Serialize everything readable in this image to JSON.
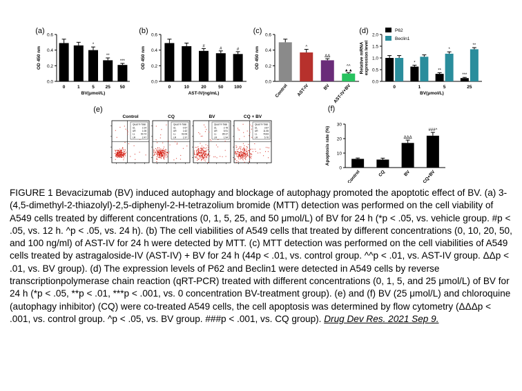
{
  "colors": {
    "black": "#000000",
    "gray": "#8a8a8a",
    "red": "#b7312c",
    "purple": "#6a2c79",
    "green": "#27c25f",
    "teal": "#2a8d9c",
    "flow": "#d62a1f"
  },
  "chart_data": [
    {
      "panel": "(a)",
      "type": "bar",
      "categories": [
        "0",
        "1",
        "5",
        "25",
        "50"
      ],
      "values": [
        0.49,
        0.46,
        0.4,
        0.27,
        0.21
      ],
      "errors": [
        0.05,
        0.04,
        0.04,
        0.03,
        0.02
      ],
      "marks": [
        "",
        "",
        "*",
        "**",
        "***"
      ],
      "ylabel": "OD 450 nm",
      "xlabel": "BV(μmol/L)",
      "ylim": [
        0,
        0.6
      ],
      "yticks": [
        "0.0",
        "0.2",
        "0.4",
        "0.6"
      ]
    },
    {
      "panel": "(b)",
      "type": "bar",
      "categories": [
        "0",
        "10",
        "20",
        "50",
        "100"
      ],
      "values": [
        0.49,
        0.45,
        0.39,
        0.36,
        0.35
      ],
      "errors": [
        0.05,
        0.04,
        0.03,
        0.03,
        0.03
      ],
      "marks": [
        "",
        "",
        "#",
        "#",
        "#"
      ],
      "ylabel": "OD 450 nm",
      "xlabel": "AST-IV(ng/mL)",
      "ylim": [
        0,
        0.6
      ],
      "yticks": [
        "0.0",
        "0.2",
        "0.4",
        "0.6"
      ]
    },
    {
      "panel": "(c)",
      "type": "bar",
      "categories": [
        "Control",
        "AST-IV",
        "BV",
        "AST-IV+BV"
      ],
      "values": [
        0.5,
        0.37,
        0.27,
        0.1
      ],
      "errors": [
        0.04,
        0.04,
        0.02,
        0.01
      ],
      "marks": [
        "",
        "^",
        "ΔΔ",
        "^^\n▲▲"
      ],
      "ylabel": "OD 450 nm",
      "ylim": [
        0,
        0.6
      ],
      "yticks": [
        "0.0",
        "0.2",
        "0.4",
        "0.6"
      ]
    },
    {
      "panel": "(d)",
      "type": "bar",
      "categories": [
        "0",
        "1",
        "5",
        "25"
      ],
      "series": [
        {
          "name": "P62",
          "values": [
            1.0,
            0.63,
            0.32,
            0.14
          ],
          "errors": [
            0.1,
            0.06,
            0.05,
            0.03
          ],
          "marks": [
            "",
            "*",
            "**",
            "***"
          ]
        },
        {
          "name": "Beclin1",
          "values": [
            1.0,
            1.05,
            1.18,
            1.37
          ],
          "errors": [
            0.1,
            0.08,
            0.08,
            0.07
          ],
          "marks": [
            "",
            "",
            "*",
            "**"
          ]
        }
      ],
      "ylabel": "Relative mRNA\nexpression level",
      "xlabel": "BV(μmol/L)",
      "ylim": [
        0,
        2.0
      ],
      "yticks": [
        "0.0",
        "0.5",
        "1.0",
        "1.5",
        "2.0"
      ],
      "legend": "top-right"
    },
    {
      "panel": "(f)",
      "type": "bar",
      "categories": [
        "Control",
        "CQ",
        "BV",
        "CQ+BV"
      ],
      "values": [
        6.0,
        5.5,
        17.0,
        22.0
      ],
      "errors": [
        0.6,
        1.0,
        2.0,
        2.3
      ],
      "marks": [
        "",
        "",
        "ΔΔΔ",
        "###^"
      ],
      "ylabel": "Apoptosis rate (%)",
      "ylim": [
        0,
        30
      ],
      "yticks": [
        "0",
        "10",
        "20",
        "30"
      ]
    }
  ],
  "flow": {
    "panel": "(e)",
    "titles": [
      "Control",
      "CQ",
      "BV",
      "CQ + BV"
    ],
    "quad_header": "Quad  % Total",
    "quads": [
      [
        [
          "UL",
          "2.24"
        ],
        [
          "UR",
          "1.08"
        ],
        [
          "LL",
          "90.74"
        ],
        [
          "LR",
          "2.47"
        ]
      ],
      [
        [
          "UL",
          "0.57"
        ],
        [
          "UR",
          "1.62"
        ],
        [
          "LL",
          "93.08"
        ],
        [
          "LR",
          "1.97"
        ]
      ],
      [
        [
          "UL",
          "2.78"
        ],
        [
          "UR",
          "5.91"
        ],
        [
          "LL",
          "85.37"
        ],
        [
          "LR",
          "1.94"
        ]
      ],
      [
        [
          "UL",
          "3.87"
        ],
        [
          "UR",
          "11.55"
        ],
        [
          "LL",
          "78.83"
        ],
        [
          "LR",
          "5.76"
        ]
      ]
    ]
  },
  "caption": {
    "text": "FIGURE 1 Bevacizumab (BV) induced autophagy and blockage of autophagy promoted the apoptotic effect of BV. (a) 3-(4,5-dimethyl-2-thiazolyl)-2,5-diphenyl-2-H-tetrazolium bromide (MTT) detection was performed on the cell viability of A549 cells treated by different concentrations (0, 1, 5, 25, and 50 μmol/L) of BV for 24 h (*p < .05, vs. vehicle group. #p < .05, vs. 12 h. ^p < .05, vs. 24 h). (b) The cell viabilities of A549 cells that treated by different concentrations (0, 10, 20, 50, and 100 ng/ml) of AST-IV for 24 h were detected by MTT. (c) MTT detection was performed on the cell viabilities of A549 cells treated by astragaloside-IV (AST-IV) + BV for 24 h (44p < .01, vs. control group. ^^p < .01, vs. AST-IV group. ΔΔp < .01, vs. BV group). (d) The expression levels of P62 and Beclin1 were detected in A549 cells by reverse transcriptionpolymerase chain reaction (qRT-PCR) treated with different concentrations (0, 1, 5, and 25 μmol/L) of BV for 24 h (*p < .05, **p < .01, ***p < .001, vs. 0 concentration BV-treatment group). (e) and (f) BV (25 μmol/L) and chloroquine (autophagy inhibitor) (CQ) were co-treated A549 cells, the cell apoptosis was determined by flow cytometry (ΔΔΔp < .001, vs. control group. ^p < .05, vs. BV group. ###p < .001, vs. CQ group). ",
    "citation": "Drug Dev Res. 2021 Sep 9."
  }
}
